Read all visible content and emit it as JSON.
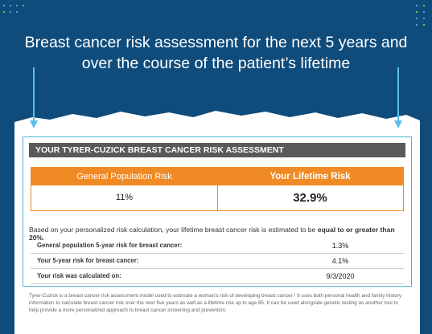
{
  "header": {
    "title": "Breast cancer risk assessment for the next 5 years and over the course of the patient’s lifetime"
  },
  "report": {
    "heading": "YOUR TYRER-CUZICK BREAST CANCER RISK ASSESSMENT",
    "table": {
      "columns": [
        "General Population Risk",
        "Your Lifetime Risk"
      ],
      "values": [
        "11%",
        "32.9%"
      ]
    },
    "summary": {
      "text": "Based on your personalized risk calculation, your lifetime breast cancer risk is estimated to be ",
      "emphasis": "equal to or greater than 20%",
      "end": "."
    },
    "rows": [
      [
        "General population 5-year risk for breast cancer:",
        "1.3%"
      ],
      [
        "Your 5-year risk for breast cancer:",
        "4.1%"
      ],
      [
        "Your risk was calculated on:",
        "9/3/2020"
      ]
    ],
    "footnote": "Tyrer-Cuzick is a breast cancer risk assessment model used to estimate a woman’s risk of developing breast cancer.¹ It uses both personal health and family history information to calculate breast cancer risk over the next five years as well as a lifetime risk up to age 85. It can be used alongside genetic testing as another tool to help provide a more personalized approach to breast cancer screening and prevention."
  }
}
